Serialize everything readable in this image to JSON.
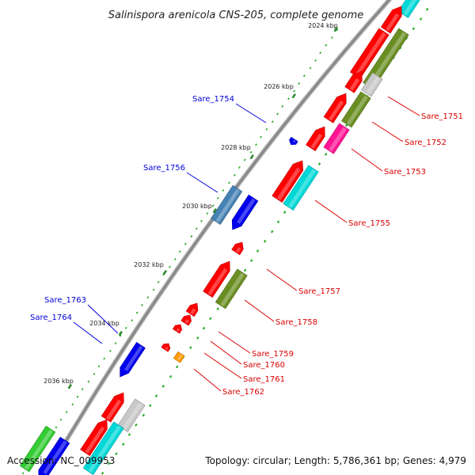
{
  "title": "Salinispora arenicola CNS-205, complete genome",
  "footer": {
    "accession": "Accession: NC_009953",
    "topology": "Topology: circular; Length: 5,786,361 bp; Genes: 4,979"
  },
  "colors": {
    "backbone": "#888888",
    "gc_dots": "#22aa22",
    "forward_label": "#0000dd",
    "reverse_label": "#dd0000"
  },
  "ticks": [
    "2024 kbp",
    "2026 kbp",
    "2028 kbp",
    "2030 kbp",
    "2032 kbp",
    "2034 kbp",
    "2036 kbp"
  ],
  "genes": [
    {
      "name": "Sare_1751",
      "strand": "reverse"
    },
    {
      "name": "Sare_1752",
      "strand": "reverse"
    },
    {
      "name": "Sare_1753",
      "strand": "reverse"
    },
    {
      "name": "Sare_1754",
      "strand": "forward"
    },
    {
      "name": "Sare_1755",
      "strand": "reverse"
    },
    {
      "name": "Sare_1756",
      "strand": "forward"
    },
    {
      "name": "Sare_1757",
      "strand": "reverse"
    },
    {
      "name": "Sare_1758",
      "strand": "reverse"
    },
    {
      "name": "Sare_1759",
      "strand": "reverse"
    },
    {
      "name": "Sare_1760",
      "strand": "reverse"
    },
    {
      "name": "Sare_1761",
      "strand": "reverse"
    },
    {
      "name": "Sare_1762",
      "strand": "reverse"
    },
    {
      "name": "Sare_1763",
      "strand": "forward"
    },
    {
      "name": "Sare_1764",
      "strand": "forward"
    }
  ],
  "cog_colors": {
    "red": "#ff0000",
    "cyan": "#00d8d8",
    "olive": "#6b8e23",
    "gray": "#c8c8c8",
    "magenta": "#ff1493",
    "blue": "#0000ee",
    "steelblue": "#4682b4",
    "orange": "#ff9900",
    "green": "#33cc33"
  }
}
